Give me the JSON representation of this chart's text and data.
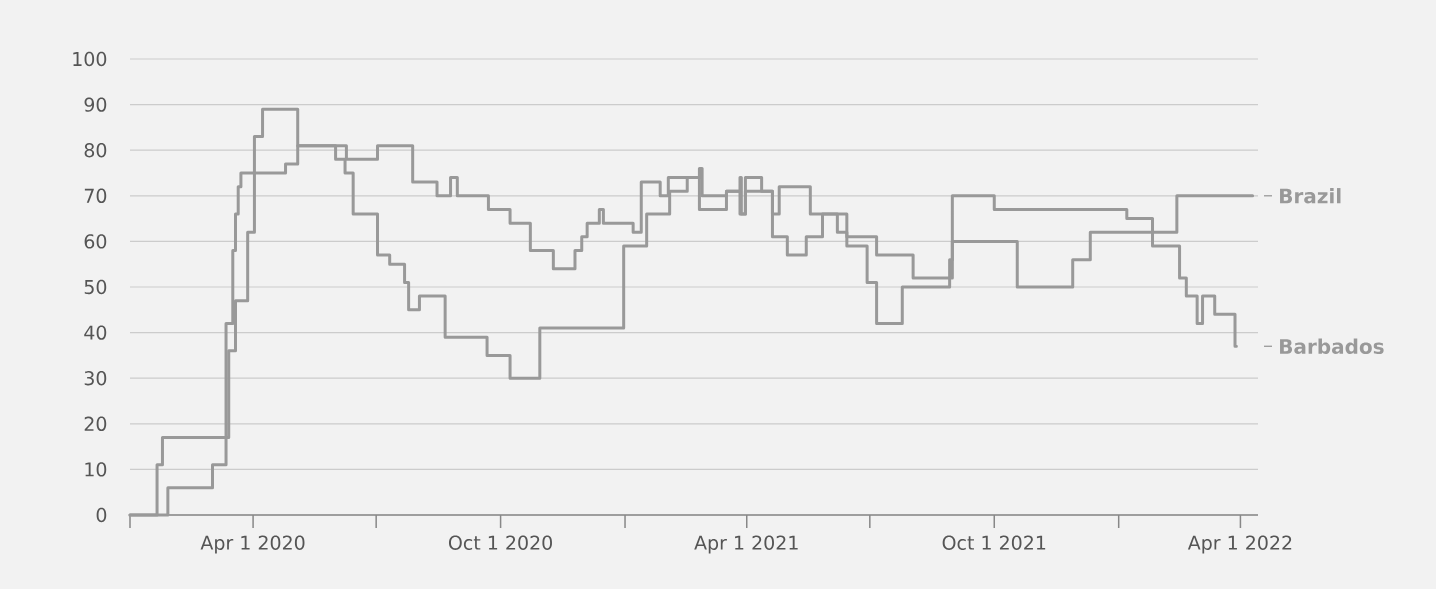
{
  "chart_data": {
    "type": "step",
    "series": [
      {
        "name": "Brazil",
        "color": "#999999",
        "x": [
          "2020-01-01",
          "2020-01-29",
          "2020-03-02",
          "2020-03-12",
          "2020-03-17",
          "2020-03-19",
          "2020-03-21",
          "2020-03-23",
          "2020-04-25",
          "2020-05-04",
          "2020-06-09",
          "2020-07-02",
          "2020-07-28",
          "2020-08-15",
          "2020-08-25",
          "2020-08-30",
          "2020-09-22",
          "2020-10-08",
          "2020-10-23",
          "2020-11-09",
          "2020-11-25",
          "2020-11-30",
          "2020-12-04",
          "2020-12-13",
          "2020-12-16",
          "2021-01-07",
          "2021-01-13",
          "2021-01-27",
          "2021-02-02",
          "2021-02-25",
          "2021-02-27",
          "2021-03-17",
          "2021-03-27",
          "2021-03-28",
          "2021-03-31",
          "2021-04-20",
          "2021-05-01",
          "2021-05-15",
          "2021-05-27",
          "2021-06-07",
          "2021-06-14",
          "2021-06-29",
          "2021-07-06",
          "2021-07-25",
          "2021-08-29",
          "2021-08-31",
          "2021-10-18",
          "2021-11-28",
          "2021-12-11",
          "2022-02-13",
          "2022-04-10"
        ],
        "values": [
          0,
          6,
          11,
          42,
          58,
          66,
          72,
          75,
          77,
          81,
          78,
          81,
          73,
          70,
          74,
          70,
          67,
          64,
          58,
          54,
          58,
          61,
          64,
          67,
          64,
          62,
          73,
          70,
          74,
          76,
          70,
          71,
          74,
          66,
          71,
          61,
          57,
          61,
          66,
          62,
          59,
          51,
          42,
          50,
          56,
          60,
          50,
          56,
          62,
          70,
          70
        ]
      },
      {
        "name": "Barbados",
        "color": "#999999",
        "x": [
          "2020-01-01",
          "2020-01-21",
          "2020-01-25",
          "2020-03-14",
          "2020-03-19",
          "2020-03-28",
          "2020-04-02",
          "2020-04-08",
          "2020-05-04",
          "2020-06-01",
          "2020-06-08",
          "2020-06-14",
          "2020-07-02",
          "2020-07-11",
          "2020-07-22",
          "2020-07-25",
          "2020-08-02",
          "2020-08-21",
          "2020-09-21",
          "2020-10-08",
          "2020-10-30",
          "2020-12-31",
          "2021-01-17",
          "2021-02-03",
          "2021-02-16",
          "2021-02-25",
          "2021-03-17",
          "2021-03-27",
          "2021-03-31",
          "2021-04-12",
          "2021-04-20",
          "2021-04-25",
          "2021-05-18",
          "2021-06-14",
          "2021-07-06",
          "2021-08-02",
          "2021-08-31",
          "2021-10-01",
          "2022-01-07",
          "2022-01-26",
          "2022-02-15",
          "2022-02-20",
          "2022-02-28",
          "2022-03-04",
          "2022-03-13",
          "2022-03-28",
          "2022-03-29"
        ],
        "values": [
          0,
          11,
          17,
          36,
          47,
          62,
          83,
          89,
          81,
          78,
          75,
          66,
          57,
          55,
          51,
          45,
          48,
          39,
          35,
          30,
          41,
          59,
          66,
          71,
          74,
          67,
          71,
          66,
          74,
          71,
          66,
          72,
          66,
          61,
          57,
          52,
          70,
          67,
          65,
          59,
          52,
          48,
          42,
          48,
          44,
          37,
          37
        ]
      }
    ],
    "xlim": [
      "2020-01-01",
      "2022-04-14"
    ],
    "xticks": [
      {
        "value": "2020-01-01",
        "label": null
      },
      {
        "value": "2020-04-01",
        "label": "Apr 1 2020"
      },
      {
        "value": "2020-07-01",
        "label": null
      },
      {
        "value": "2020-10-01",
        "label": "Oct 1 2020"
      },
      {
        "value": "2021-01-01",
        "label": null
      },
      {
        "value": "2021-04-01",
        "label": "Apr 1 2021"
      },
      {
        "value": "2021-07-01",
        "label": null
      },
      {
        "value": "2021-10-01",
        "label": "Oct 1 2021"
      },
      {
        "value": "2022-01-01",
        "label": null
      },
      {
        "value": "2022-04-01",
        "label": "Apr 1 2022"
      }
    ],
    "ylim": [
      0,
      100
    ],
    "yticks": [
      0,
      10,
      20,
      30,
      40,
      50,
      60,
      70,
      80,
      90,
      100
    ],
    "grid": "y",
    "legend": "right"
  }
}
